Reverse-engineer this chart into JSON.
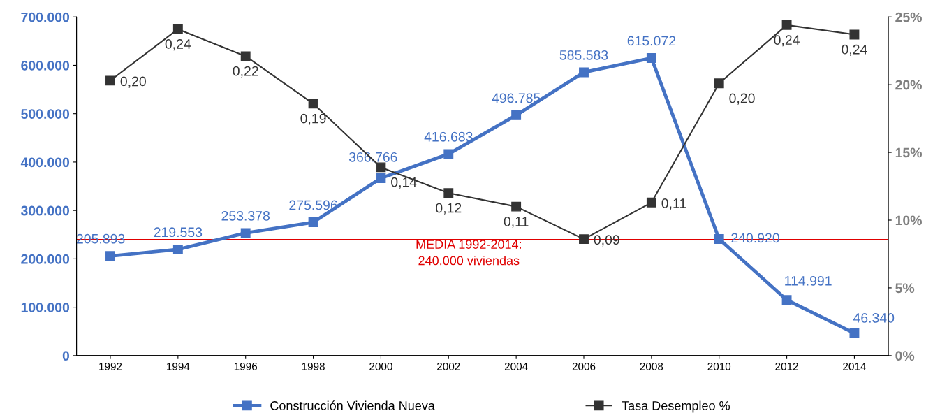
{
  "chart_data": {
    "type": "line",
    "categories": [
      "1992",
      "1994",
      "1996",
      "1998",
      "2000",
      "2002",
      "2004",
      "2006",
      "2008",
      "2010",
      "2012",
      "2014"
    ],
    "series": [
      {
        "name": "Construcción Vivienda Nueva",
        "color": "#4472c4",
        "values": [
          205893,
          219553,
          253378,
          275596,
          366766,
          416683,
          496785,
          585583,
          615072,
          240920,
          114991,
          46340
        ],
        "value_labels": [
          "205.893",
          "219.553",
          "253.378",
          "275.596",
          "366.766",
          "416.683",
          "496.785",
          "585.583",
          "615.072",
          "240.920",
          "114.991",
          "46.340"
        ]
      },
      {
        "name": "Tasa Desempleo %",
        "color": "#333333",
        "axis": "y2",
        "values": [
          0.203,
          0.241,
          0.221,
          0.186,
          0.139,
          0.12,
          0.11,
          0.086,
          0.113,
          0.201,
          0.244,
          0.237
        ],
        "value_labels": [
          "0,20",
          "0,24",
          "0,22",
          "0,19",
          "0,14",
          "0,12",
          "0,11",
          "0,09",
          "0,11",
          "0,20",
          "0,24",
          "0,24"
        ]
      }
    ],
    "ylim": [
      0,
      700000
    ],
    "yticks": [
      {
        "value": 0,
        "label": "0"
      },
      {
        "value": 100000,
        "label": "100.000"
      },
      {
        "value": 200000,
        "label": "200.000"
      },
      {
        "value": 300000,
        "label": "300.000"
      },
      {
        "value": 400000,
        "label": "400.000"
      },
      {
        "value": 500000,
        "label": "500.000"
      },
      {
        "value": 600000,
        "label": "600.000"
      },
      {
        "value": 700000,
        "label": "700.000"
      }
    ],
    "y2lim": [
      0,
      0.25
    ],
    "y2ticks": [
      {
        "value": 0,
        "label": "0%"
      },
      {
        "value": 0.05,
        "label": "5%"
      },
      {
        "value": 0.1,
        "label": "10%"
      },
      {
        "value": 0.15,
        "label": "15%"
      },
      {
        "value": 0.2,
        "label": "20%"
      },
      {
        "value": 0.25,
        "label": "25%"
      }
    ],
    "ref_lines": [
      {
        "axis": "y",
        "value": 240000,
        "label": "MEDIA 1992-2014:\n240.000 viviendas",
        "color": "#e00000"
      }
    ],
    "marker": "square",
    "line_style": "solid",
    "grid": false,
    "legend": "bottom"
  }
}
